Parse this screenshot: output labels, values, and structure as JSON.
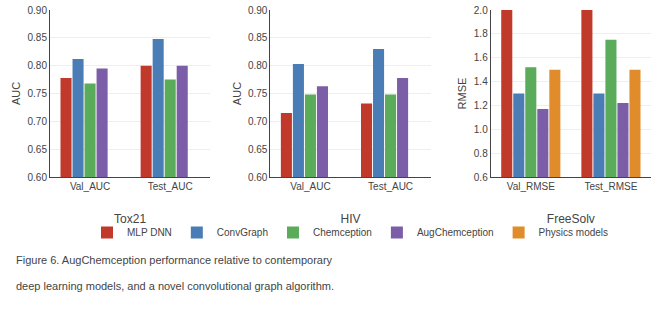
{
  "chart_data": [
    {
      "type": "bar",
      "xlabel": "Tox21",
      "ylabel": "AUC",
      "categories": [
        "Val_AUC",
        "Test_AUC"
      ],
      "series": [
        {
          "name": "MLP DNN",
          "color": "#c0392b",
          "values": [
            0.778,
            0.8
          ]
        },
        {
          "name": "ConvGraph",
          "color": "#4a7db5",
          "values": [
            0.812,
            0.848
          ]
        },
        {
          "name": "Chemception",
          "color": "#5aab5a",
          "values": [
            0.768,
            0.775
          ]
        },
        {
          "name": "AugChemception",
          "color": "#7b5ea7",
          "values": [
            0.795,
            0.8
          ]
        },
        {
          "name": "Physics models",
          "color": "#e08c2a",
          "values": [
            null,
            null
          ]
        }
      ],
      "ylim": [
        0.6,
        0.9
      ],
      "yticks": [
        {
          "value": 0.6,
          "label": "0.60"
        },
        0.65,
        {
          "value": 0.7,
          "label": "0.70"
        },
        0.75,
        {
          "value": 0.8,
          "label": "0.80"
        },
        0.85,
        {
          "value": 0.9,
          "label": "0.90"
        }
      ],
      "grid": true,
      "legend": "bottom"
    },
    {
      "type": "bar",
      "xlabel": "HIV",
      "ylabel": "AUC",
      "categories": [
        "Val_AUC",
        "Test_AUC"
      ],
      "series": [
        {
          "name": "MLP DNN",
          "color": "#c0392b",
          "values": [
            0.715,
            0.732
          ]
        },
        {
          "name": "ConvGraph",
          "color": "#4a7db5",
          "values": [
            0.803,
            0.83
          ]
        },
        {
          "name": "Chemception",
          "color": "#5aab5a",
          "values": [
            0.748,
            0.748
          ]
        },
        {
          "name": "AugChemception",
          "color": "#7b5ea7",
          "values": [
            0.763,
            0.778
          ]
        },
        {
          "name": "Physics models",
          "color": "#e08c2a",
          "values": [
            null,
            null
          ]
        }
      ],
      "ylim": [
        0.6,
        0.9
      ],
      "yticks": [
        {
          "value": 0.6,
          "label": "0.60"
        },
        0.65,
        {
          "value": 0.7,
          "label": "0.70"
        },
        0.75,
        {
          "value": 0.8,
          "label": "0.80"
        },
        0.85,
        {
          "value": 0.9,
          "label": "0.90"
        }
      ],
      "grid": true,
      "legend": "bottom"
    },
    {
      "type": "bar",
      "xlabel": "FreeSolv",
      "ylabel": "RMSE",
      "categories": [
        "Val_RMSE",
        "Test_RMSE"
      ],
      "series": [
        {
          "name": "MLP DNN",
          "color": "#c0392b",
          "values": [
            2.0,
            2.0
          ]
        },
        {
          "name": "ConvGraph",
          "color": "#4a7db5",
          "values": [
            1.3,
            1.3
          ]
        },
        {
          "name": "Chemception",
          "color": "#5aab5a",
          "values": [
            1.52,
            1.75
          ]
        },
        {
          "name": "AugChemception",
          "color": "#7b5ea7",
          "values": [
            1.17,
            1.22
          ]
        },
        {
          "name": "Physics models",
          "color": "#e08c2a",
          "values": [
            1.5,
            1.5
          ]
        }
      ],
      "ylim": [
        0.6,
        2.0
      ],
      "yticks": [
        0.6,
        0.8,
        {
          "value": 1.0,
          "label": "1.0"
        },
        1.2,
        1.4,
        1.6,
        1.8,
        {
          "value": 2.0,
          "label": "2.0"
        }
      ],
      "grid": true,
      "legend": "bottom"
    }
  ],
  "annotations": [
    "Figure 6. AugChemception performance relative to contemporary",
    "deep learning models, and a novel convolutional graph algorithm."
  ]
}
